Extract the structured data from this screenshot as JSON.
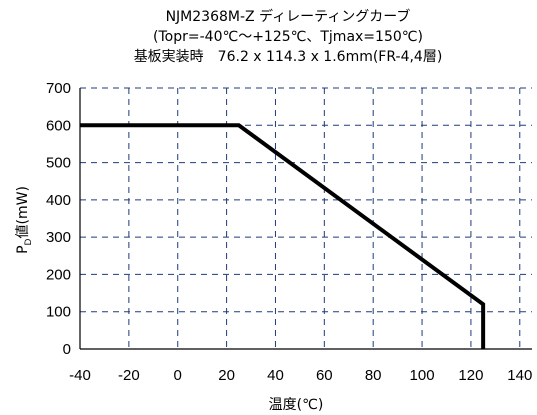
{
  "chart_data": {
    "type": "line",
    "title_lines": [
      "NJM2368M-Z ディレーティングカーブ",
      "(Topr=-40℃～+125℃、Tjmax=150℃)",
      "基板実装時　76.2 x 114.3 x 1.6mm(FR-4,4層)"
    ],
    "xlabel": "温度(℃)",
    "ylabel": {
      "main": "P",
      "subscript": "D",
      "rest": "値(mW)"
    },
    "xlim": [
      -40,
      145
    ],
    "ylim": [
      0,
      700
    ],
    "xticks": [
      -40,
      -20,
      0,
      20,
      40,
      60,
      80,
      100,
      120,
      140
    ],
    "yticks": [
      0,
      100,
      200,
      300,
      400,
      500,
      600,
      700
    ],
    "grid": true,
    "series": [
      {
        "x": [
          -40,
          25,
          125,
          125
        ],
        "y": [
          600,
          600,
          120,
          0
        ],
        "color": "#000000"
      }
    ]
  }
}
